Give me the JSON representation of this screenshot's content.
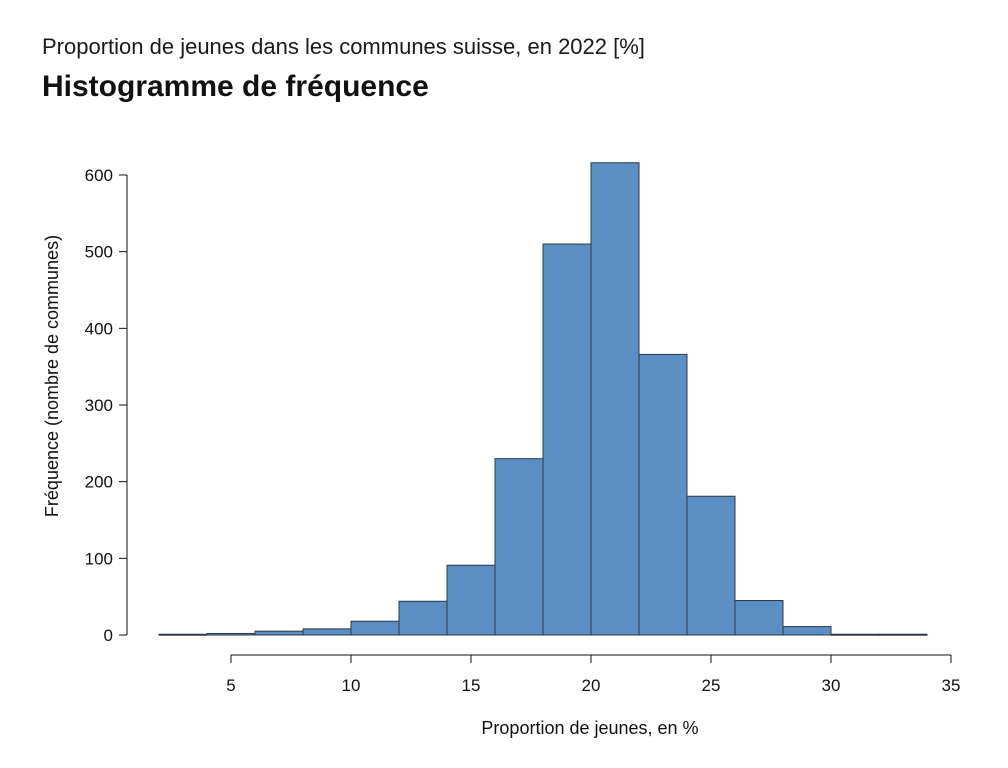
{
  "header": {
    "subtitle": "Proportion de jeunes dans les communes suisse, en 2022 [%]",
    "title": "Histogramme de fréquence"
  },
  "chart_data": {
    "type": "bar",
    "title": "Histogramme de fréquence",
    "xlabel": "Proportion de jeunes, en %",
    "ylabel": "Fréquence (nombre de communes)",
    "bin_edges": [
      2,
      4,
      6,
      8,
      10,
      12,
      14,
      16,
      18,
      20,
      22,
      24,
      26,
      28,
      30,
      32,
      34
    ],
    "values": [
      1,
      2,
      5,
      8,
      18,
      44,
      91,
      230,
      510,
      616,
      366,
      181,
      45,
      11,
      1,
      1
    ],
    "xlim": [
      2,
      35
    ],
    "ylim": [
      0,
      600
    ],
    "x_ticks": [
      "5",
      "10",
      "15",
      "20",
      "25",
      "30",
      "35"
    ],
    "y_ticks": [
      "0",
      "100",
      "200",
      "300",
      "400",
      "500",
      "600"
    ],
    "bar_color": "#5b8ec2",
    "bar_edge_color": "#2e3a46",
    "grid": false
  }
}
